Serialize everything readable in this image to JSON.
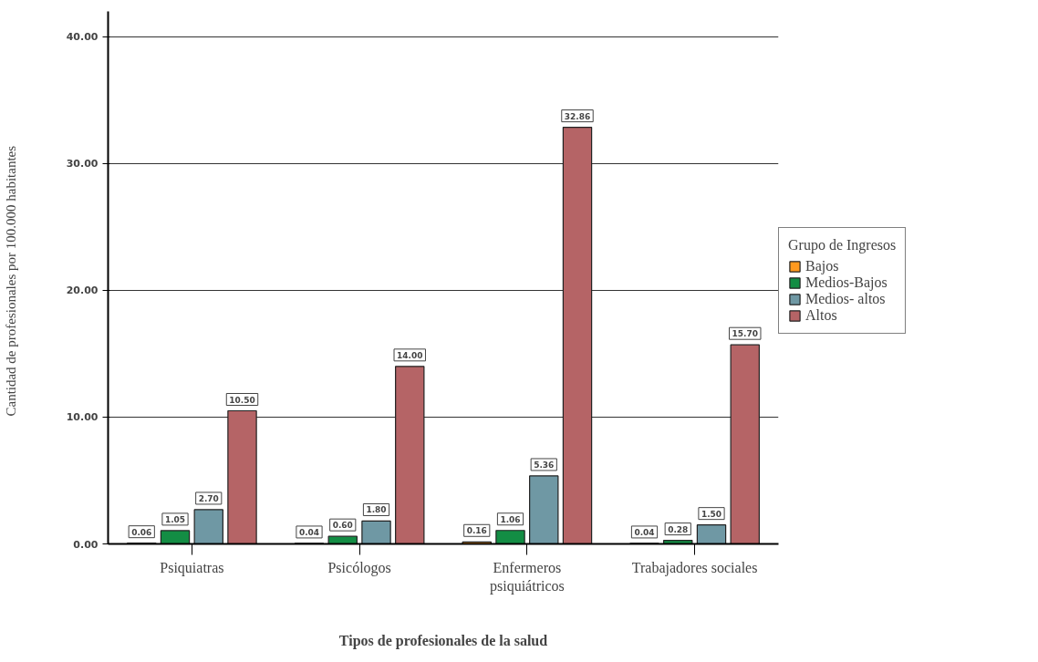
{
  "chart_data": {
    "type": "bar",
    "xlabel": "Tipos de profesionales de la salud",
    "ylabel": "Cantidad de profesionales por  100.000  habitantes",
    "legend_title": "Grupo de Ingresos",
    "categories": [
      "Psiquiatras",
      "Psicólogos",
      "Enfermeros\npsiquiátricos",
      "Trabajadores sociales"
    ],
    "series": [
      {
        "name": "Bajos",
        "color": "#ff9a1f",
        "values": [
          0.06,
          0.04,
          0.16,
          0.04
        ],
        "value_labels": [
          "0.06",
          "0.04",
          "0.16",
          "0.04"
        ]
      },
      {
        "name": "Medios-Bajos",
        "color": "#138d44",
        "values": [
          1.05,
          0.6,
          1.06,
          0.28
        ],
        "value_labels": [
          "1.05",
          "0.60",
          "1.06",
          "0.28"
        ]
      },
      {
        "name": "Medios- altos",
        "color": "#6f98a4",
        "values": [
          2.7,
          1.8,
          5.36,
          1.5
        ],
        "value_labels": [
          "2.70",
          "1.80",
          "5.36",
          "1.50"
        ]
      },
      {
        "name": "Altos",
        "color": "#b56466",
        "values": [
          10.5,
          14.0,
          32.86,
          15.7
        ],
        "value_labels": [
          "10.50",
          "14.00",
          "32.86",
          "15.70"
        ]
      }
    ],
    "ylim": [
      0,
      42
    ],
    "yticks": [
      {
        "value": 0,
        "label": "0.00"
      },
      {
        "value": 10,
        "label": "10.00"
      },
      {
        "value": 20,
        "label": "20.00"
      },
      {
        "value": 30,
        "label": "30.00"
      },
      {
        "value": 40,
        "label": "40.00"
      }
    ],
    "grid": "y",
    "legend": "right"
  }
}
